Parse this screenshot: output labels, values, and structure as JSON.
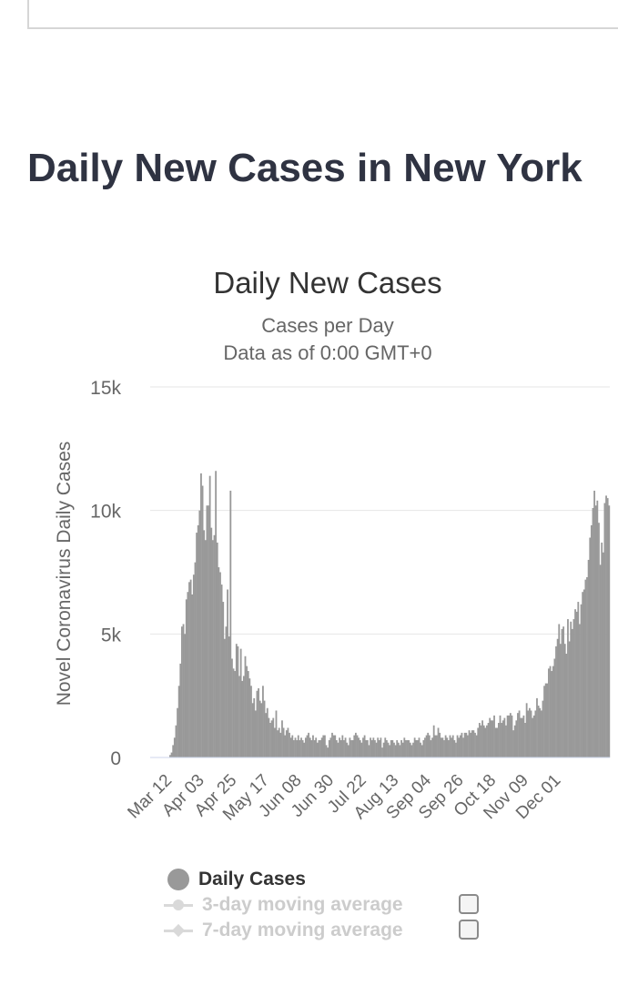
{
  "page_title": "Daily New Cases in New York",
  "chart_data": {
    "type": "bar",
    "title": "Daily New Cases",
    "subtitle_lines": [
      "Cases per Day",
      "Data as of 0:00 GMT+0"
    ],
    "ylabel": "Novel Coronavirus Daily Cases",
    "ylim": [
      0,
      15000
    ],
    "yticks": [
      0,
      5000,
      10000,
      15000
    ],
    "ytick_labels": [
      "0",
      "5k",
      "10k",
      "15k"
    ],
    "grid": true,
    "bar_color": "#999999",
    "start_date": "Mar 01",
    "xtick_labels": [
      "Mar 12",
      "Apr 03",
      "Apr 25",
      "May 17",
      "Jun 08",
      "Jun 30",
      "Jul 22",
      "Aug 13",
      "Sep 04",
      "Sep 26",
      "Oct 18",
      "Nov 09",
      "Dec 01"
    ],
    "series": [
      {
        "name": "Daily Cases",
        "values": [
          0,
          0,
          0,
          0,
          0,
          0,
          0,
          0,
          0,
          0,
          0,
          0,
          0,
          100,
          200,
          500,
          800,
          1300,
          2000,
          2900,
          3800,
          5300,
          5400,
          5000,
          6400,
          6700,
          7100,
          7200,
          6600,
          7400,
          7900,
          9100,
          9400,
          10000,
          11500,
          11000,
          9200,
          8800,
          10200,
          10200,
          11400,
          9300,
          8800,
          9000,
          11600,
          8700,
          7700,
          7500,
          7000,
          6300,
          4800,
          5300,
          6800,
          4900,
          10800,
          4000,
          3600,
          3500,
          4600,
          4500,
          3300,
          4400,
          3100,
          3300,
          4100,
          3700,
          3500,
          3200,
          2900,
          2200,
          2400,
          1900,
          2700,
          2800,
          2300,
          2200,
          2900,
          2300,
          1800,
          2000,
          1600,
          1400,
          1500,
          1600,
          1200,
          1900,
          1100,
          1200,
          1000,
          1500,
          1200,
          900,
          1100,
          1200,
          1000,
          800,
          900,
          700,
          800,
          700,
          900,
          700,
          800,
          700,
          600,
          800,
          900,
          1000,
          800,
          700,
          900,
          700,
          800,
          600,
          700,
          700,
          800,
          900,
          900,
          500,
          400,
          700,
          800,
          1000,
          900,
          900,
          700,
          600,
          800,
          700,
          900,
          700,
          800,
          600,
          500,
          800,
          700,
          700,
          900,
          1000,
          900,
          800,
          700,
          600,
          800,
          900,
          700,
          700,
          500,
          800,
          700,
          800,
          700,
          600,
          800,
          700,
          800,
          400,
          600,
          800,
          700,
          600,
          500,
          700,
          700,
          600,
          500,
          700,
          600,
          500,
          700,
          600,
          800,
          700,
          700,
          700,
          600,
          500,
          600,
          800,
          700,
          700,
          800,
          600,
          500,
          700,
          800,
          900,
          1000,
          900,
          700,
          800,
          1300,
          900,
          900,
          1200,
          1000,
          800,
          800,
          700,
          900,
          800,
          700,
          900,
          800,
          900,
          700,
          600,
          900,
          800,
          900,
          1000,
          800,
          1000,
          1000,
          900,
          1100,
          1000,
          1100,
          1100,
          1000,
          900,
          1200,
          1400,
          1300,
          1500,
          1300,
          1200,
          1300,
          1400,
          1600,
          1500,
          1500,
          1700,
          1200,
          1200,
          1400,
          1700,
          1400,
          1500,
          1600,
          1300,
          1700,
          1700,
          1800,
          1700,
          1100,
          1300,
          1500,
          1800,
          1900,
          1600,
          1600,
          1700,
          1400,
          2200,
          1900,
          2000,
          1900,
          1600,
          1700,
          1900,
          2400,
          2100,
          2000,
          1900,
          2300,
          2900,
          3000,
          3000,
          3600,
          3700,
          3500,
          3700,
          4000,
          4500,
          4800,
          5400,
          4600,
          5200,
          5300,
          4600,
          4200,
          5600,
          4700,
          5500,
          5200,
          5600,
          6000,
          5900,
          6300,
          5400,
          6200,
          6700,
          6800,
          7200,
          7300,
          8000,
          8900,
          9400,
          10100,
          10800,
          10200,
          10400,
          9500,
          7800,
          8700,
          8300,
          10300,
          10600,
          10500,
          10200
        ]
      },
      {
        "name": "3-day moving average",
        "visible": false
      },
      {
        "name": "7-day moving average",
        "visible": false
      }
    ]
  },
  "legend": {
    "items": [
      {
        "label": "Daily Cases",
        "color": "#333333",
        "marker": "circle"
      },
      {
        "label": "3-day moving average",
        "color": "#cccccc",
        "marker": "circle-line"
      },
      {
        "label": "7-day moving average",
        "color": "#cccccc",
        "marker": "diamond-line"
      }
    ]
  }
}
